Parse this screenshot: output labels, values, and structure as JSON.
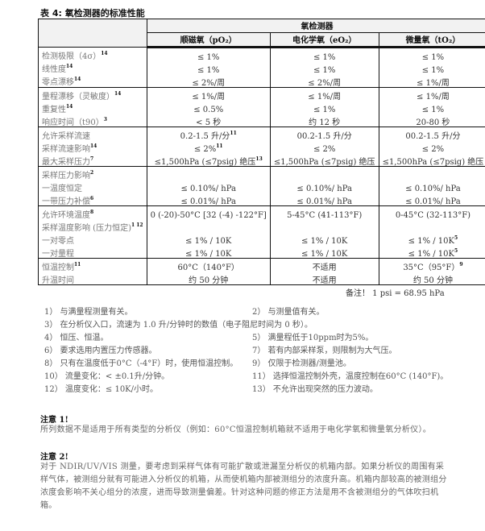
{
  "title": "表 4: 氧检测器的标准性能",
  "table": {
    "group_header": "氧检测器",
    "columns": [
      "顺磁氧（pO₂）",
      "电化学氧（eO₂）",
      "微量氧（tO₂）"
    ],
    "groups": [
      {
        "rows": [
          {
            "label": "检测极限（4σ）",
            "sup": "14",
            "values": [
              "≤ 1%",
              "≤ 1%",
              "≤ 1%"
            ],
            "vsup": [
              "",
              "",
              ""
            ]
          },
          {
            "label": "线性度",
            "sup": "14",
            "values": [
              "≤ 1%",
              "≤ 1%",
              "≤ 1%"
            ],
            "vsup": [
              "",
              "",
              ""
            ]
          },
          {
            "label": "零点漂移",
            "sup": "14",
            "values": [
              "≤ 2%/周",
              "≤ 2%/周",
              "≤ 1%/周"
            ],
            "vsup": [
              "",
              "",
              ""
            ]
          }
        ]
      },
      {
        "rows": [
          {
            "label": "量程漂移（灵敏度）",
            "sup": "14",
            "values": [
              "≤ 1%/周",
              "≤ 1%/周",
              "≤ 1%/周"
            ],
            "vsup": [
              "",
              "",
              ""
            ]
          },
          {
            "label": "重复性",
            "sup": "14",
            "values": [
              "≤ 0.5%",
              "≤ 1%",
              "≤ 1%"
            ],
            "vsup": [
              "",
              "",
              ""
            ]
          },
          {
            "label": "响应时间（t90）",
            "sup": "3",
            "values": [
              "< 5 秒",
              "约 12 秒",
              "20-80 秒"
            ],
            "vsup": [
              "",
              "",
              ""
            ]
          }
        ]
      },
      {
        "rows": [
          {
            "label": "允许采样流速",
            "sup": "",
            "values": [
              "0.2-1.5 升/分",
              "00.2-1.5 升/分",
              "00.2-1.5 升/分"
            ],
            "vsup": [
              "11",
              "",
              ""
            ]
          },
          {
            "label": "采样流速影响",
            "sup": "14",
            "values": [
              "≤ 2%",
              "≤ 2%",
              "≤ 2%"
            ],
            "vsup": [
              "11",
              "",
              ""
            ]
          },
          {
            "label": "最大采样压力",
            "sup": "7",
            "values": [
              "≤1,500hPa (≤7psig) 绝压",
              "≤1,500hPa (≤7psig) 绝压",
              "≤1,500hPa (≤7psig) 绝压"
            ],
            "vsup": [
              "13",
              "",
              ""
            ]
          }
        ]
      },
      {
        "rows": [
          {
            "label": "采样压力影响",
            "sup": "2",
            "values": [
              "",
              "",
              ""
            ],
            "vsup": [
              "",
              "",
              ""
            ]
          },
          {
            "label": "一温度恒定",
            "sup": "",
            "values": [
              "≤ 0.10%/ hPa",
              "≤ 0.10%/ hPa",
              "≤ 0.10%/ hPa"
            ],
            "vsup": [
              "",
              "",
              ""
            ]
          },
          {
            "label": "一带压力补偿",
            "sup": "6",
            "values": [
              "≤ 0.01%/ hPa",
              "≤ 0.01%/ hPa",
              "≤ 0.01%/ hPa"
            ],
            "vsup": [
              "",
              "",
              ""
            ]
          }
        ]
      },
      {
        "rows": [
          {
            "label": "允许环境温度",
            "sup": "8",
            "values": [
              "0 (-20)-50°C [32 (-4) -122°F]",
              "5-45°C (41-113°F)",
              "0-45°C (32-113°F)"
            ],
            "vsup": [
              "",
              "",
              ""
            ]
          },
          {
            "label": "采样温度影响 (压力恒定)",
            "sup": "1 12",
            "values": [
              "",
              "",
              ""
            ],
            "vsup": [
              "",
              "",
              ""
            ]
          },
          {
            "label": "一对零点",
            "sup": "",
            "values": [
              "≤ 1% / 10K",
              "≤ 1% / 10K",
              "≤ 1% / 10K"
            ],
            "vsup": [
              "",
              "",
              "5"
            ]
          },
          {
            "label": "一对量程",
            "sup": "",
            "values": [
              "≤ 1% / 10K",
              "≤ 1% / 10K",
              "≤ 1% / 10K"
            ],
            "vsup": [
              "",
              "",
              "5"
            ]
          }
        ]
      },
      {
        "rows": [
          {
            "label": "恒温控制",
            "sup": "11",
            "values": [
              "60°C（140°F）",
              "不适用",
              "35°C（95°F）"
            ],
            "vsup": [
              "",
              "",
              "9"
            ]
          },
          {
            "label": "升温时间",
            "sup": "",
            "values": [
              "约 50 分钟",
              "不适用",
              "约 50 分钟"
            ],
            "vsup": [
              "",
              "",
              ""
            ]
          }
        ]
      }
    ]
  },
  "remark": "备注！ 1 psi = 68.95 hPa",
  "footnotes": [
    "1） 与满量程测量有关。",
    "2） 与测量值有关。",
    "3） 在分析仪入口，流速为 1.0 升/分钟时的数值（电子阻尼时间为 0 秒）。",
    "4） 恒压、恒温。",
    "5） 满量程低于10ppm时为5%。",
    "6） 要求选用内置压力传感器。",
    "7） 若有内部采样泵，则限制为大气压。",
    "8） 只有在温度低于0°C（-4°F）时，使用恒温控制。",
    "9） 仅限于检测器/测量池。",
    "10） 流量变化：< ±0.1升/分钟。",
    "11） 选择恒温控制外壳，温度控制在60°C (140°F)。",
    "12） 温度变化：≤ 10K/小时。",
    "13） 不允许出现突然的压力波动。"
  ],
  "notes": [
    {
      "heading": "注意 1!",
      "text": "所列数据不是适用于所有类型的分析仪（例如：60°C恒温控制机箱就不适用于电化学氧和微量氧分析仪）。"
    },
    {
      "heading": "注意 2!",
      "text": "对于 NDIR/UV/VIS 测量，要考虑到采样气体有可能扩散或泄漏至分析仪的机箱内部。如果分析仪的周围有采样气体，被测组分就有可能进入分析仪的机箱，从而使机箱内部被测组分的浓度升高。机箱内部较高的被测组分浓度会影响不关心组分的浓度，进而导致测量偏差。针对这种问题的修正方法是用不含被测组分的气体吹扫机箱。"
    }
  ]
}
